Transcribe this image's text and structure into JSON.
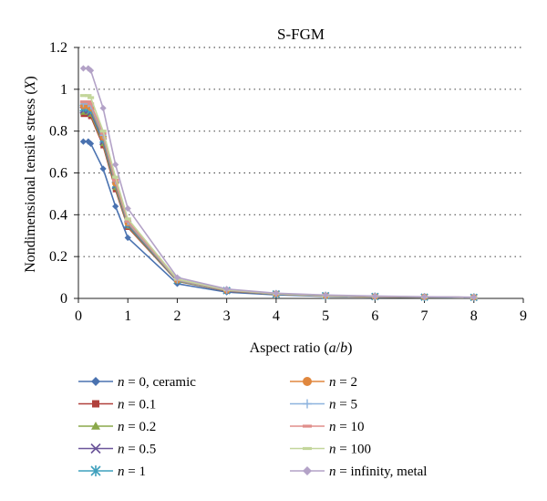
{
  "chart_data": {
    "type": "line",
    "title": "S-FGM",
    "xlabel": "Aspect ratio (a/b)",
    "ylabel": "Nondimensional tensile stress (X)",
    "xlim": [
      0,
      9
    ],
    "ylim": [
      0,
      1.2
    ],
    "xticks": [
      "0",
      "1",
      "2",
      "3",
      "4",
      "5",
      "6",
      "7",
      "8",
      "9"
    ],
    "yticks": [
      "0",
      "0.2",
      "0.4",
      "0.6",
      "0.8",
      "1",
      "1.2"
    ],
    "grid": "horizontal-dotted",
    "legend_position": "bottom",
    "x": [
      0.1,
      0.2,
      0.25,
      0.5,
      0.75,
      1,
      2,
      3,
      4,
      5,
      6,
      7,
      8
    ],
    "series": [
      {
        "name": "n = 0, ceramic",
        "marker": "diamond",
        "color": "#4a72b0",
        "values": [
          0.75,
          0.75,
          0.74,
          0.62,
          0.44,
          0.29,
          0.07,
          0.03,
          0.017,
          0.01,
          0.007,
          0.005,
          0.004
        ]
      },
      {
        "name": "n = 0.1",
        "marker": "square",
        "color": "#b0403c",
        "values": [
          0.88,
          0.88,
          0.87,
          0.73,
          0.52,
          0.34,
          0.082,
          0.035,
          0.02,
          0.012,
          0.008,
          0.006,
          0.005
        ]
      },
      {
        "name": "n = 0.2",
        "marker": "triangle",
        "color": "#8aa84a",
        "values": [
          0.89,
          0.89,
          0.88,
          0.74,
          0.53,
          0.345,
          0.083,
          0.036,
          0.02,
          0.012,
          0.008,
          0.006,
          0.005
        ]
      },
      {
        "name": "n = 0.5",
        "marker": "x",
        "color": "#6b559a",
        "values": [
          0.9,
          0.9,
          0.89,
          0.75,
          0.54,
          0.35,
          0.085,
          0.037,
          0.021,
          0.013,
          0.009,
          0.006,
          0.005
        ]
      },
      {
        "name": "n = 1",
        "marker": "star",
        "color": "#3fa0bd",
        "values": [
          0.91,
          0.91,
          0.9,
          0.76,
          0.545,
          0.355,
          0.086,
          0.038,
          0.021,
          0.013,
          0.009,
          0.006,
          0.005
        ]
      },
      {
        "name": "n = 2",
        "marker": "circle",
        "color": "#e0873e",
        "values": [
          0.92,
          0.92,
          0.91,
          0.77,
          0.55,
          0.36,
          0.087,
          0.038,
          0.022,
          0.013,
          0.009,
          0.007,
          0.005
        ]
      },
      {
        "name": "n = 5",
        "marker": "plus",
        "color": "#8db3de",
        "values": [
          0.93,
          0.93,
          0.92,
          0.78,
          0.56,
          0.365,
          0.088,
          0.039,
          0.022,
          0.014,
          0.009,
          0.007,
          0.005
        ]
      },
      {
        "name": "n = 10",
        "marker": "dash",
        "color": "#e08e8a",
        "values": [
          0.94,
          0.94,
          0.93,
          0.79,
          0.565,
          0.37,
          0.09,
          0.04,
          0.022,
          0.014,
          0.009,
          0.007,
          0.005
        ]
      },
      {
        "name": "n = 100",
        "marker": "dash",
        "color": "#c3d69b",
        "values": [
          0.97,
          0.97,
          0.96,
          0.8,
          0.58,
          0.38,
          0.092,
          0.041,
          0.023,
          0.014,
          0.01,
          0.007,
          0.005
        ]
      },
      {
        "name": "n = infinity, metal",
        "marker": "diamond",
        "color": "#b3a2c7",
        "values": [
          1.1,
          1.1,
          1.09,
          0.91,
          0.64,
          0.43,
          0.1,
          0.045,
          0.025,
          0.016,
          0.011,
          0.008,
          0.006
        ]
      }
    ]
  }
}
